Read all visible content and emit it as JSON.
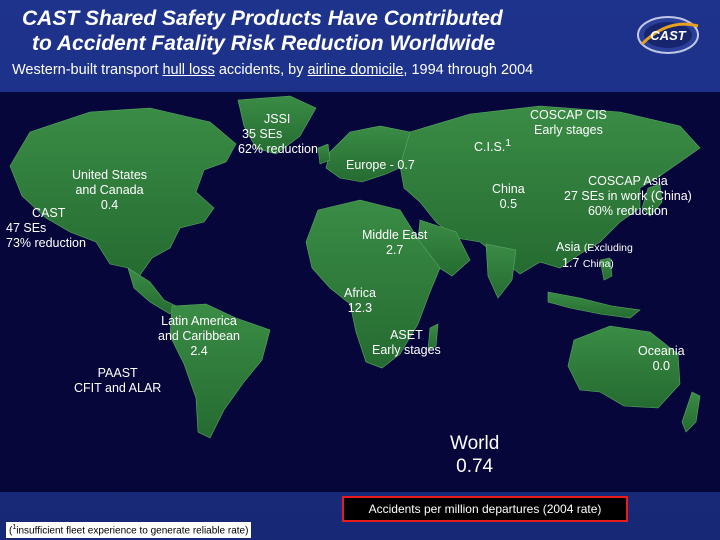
{
  "title": {
    "line1": "CAST Shared Safety Products Have Contributed",
    "line2": "to Accident Fatality Risk Reduction Worldwide"
  },
  "subtitle": {
    "prefix": "Western-built transport ",
    "hull_loss": "hull loss",
    "middle": " accidents, by ",
    "airline_domicile": "airline domicile",
    "suffix": ", 1994 through 2004"
  },
  "logo": {
    "text": "CAST"
  },
  "regions": {
    "jssi": {
      "name": "JSSI",
      "line1": "35 SEs",
      "line2": "62% reduction"
    },
    "us_canada": {
      "line1": "United States",
      "line2": "and Canada",
      "value": "0.4"
    },
    "cast": {
      "name": "CAST",
      "line1": "47 SEs",
      "line2": "73% reduction"
    },
    "europe": {
      "label": "Europe - 0.7"
    },
    "cis": {
      "label": "C.I.S.",
      "sup": "1"
    },
    "coscap_cis": {
      "name": "COSCAP CIS",
      "line1": "Early stages"
    },
    "china": {
      "label": "China",
      "value": "0.5"
    },
    "coscap_asia": {
      "name": "COSCAP Asia",
      "line1": "27 SEs in work (China)",
      "line2": "60% reduction"
    },
    "middle_east": {
      "label": "Middle East",
      "value": "2.7"
    },
    "asia": {
      "label": "Asia",
      "note1": "(Excluding",
      "value": "1.7",
      "note2": "China)"
    },
    "africa": {
      "label": "Africa",
      "value": "12.3"
    },
    "latin_america": {
      "line1": "Latin America",
      "line2": "and Caribbean",
      "value": "2.4"
    },
    "paast": {
      "name": "PAAST",
      "line1": "CFIT and ALAR"
    },
    "aset": {
      "name": "ASET",
      "line1": "Early stages"
    },
    "oceania": {
      "label": "Oceania",
      "value": "0.0"
    },
    "world": {
      "label": "World",
      "value": "0.74"
    }
  },
  "legend": {
    "text": "Accidents per million departures (2004 rate)"
  },
  "footnote": {
    "sup": "1",
    "text": "insufficient fleet experience to generate reliable rate)",
    "open": "("
  },
  "colors": {
    "background": "#1c2f84",
    "map_ocean": "#06063a",
    "land": "#2f7d3b",
    "program_label": "#e81c1c",
    "text": "#ffffff"
  }
}
